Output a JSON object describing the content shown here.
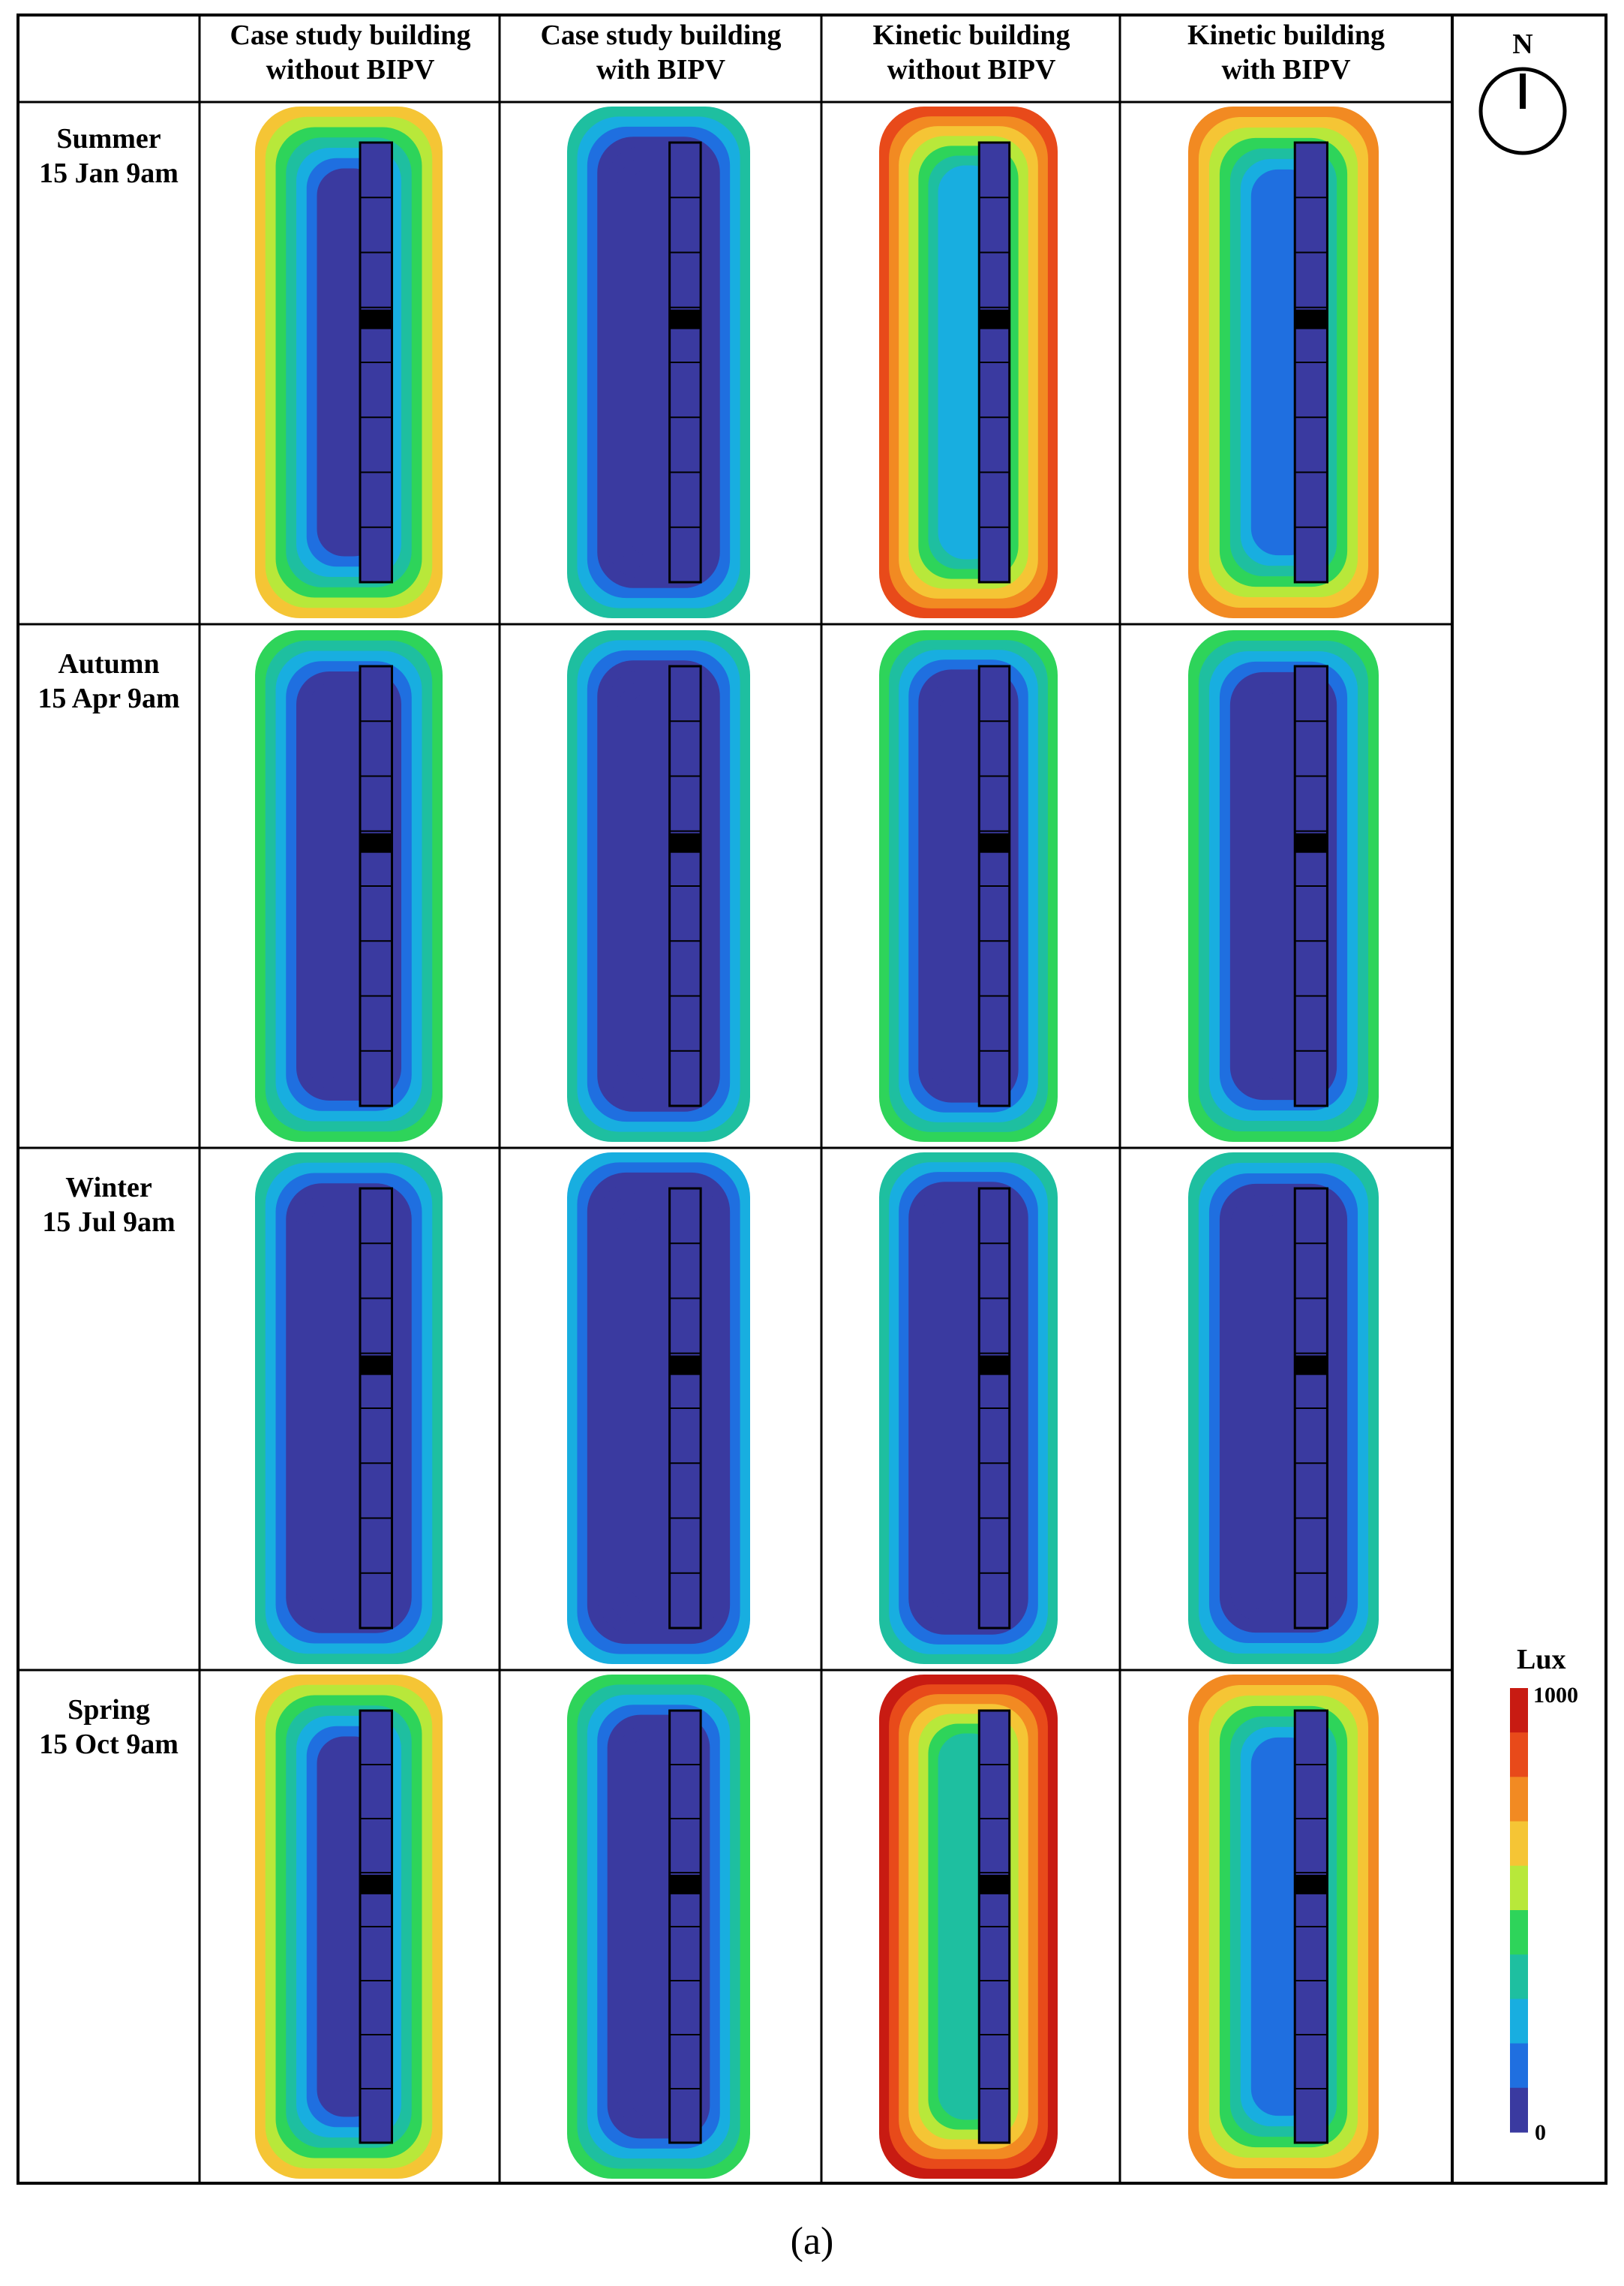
{
  "columns": [
    {
      "line1": "Case study building",
      "line2": "without BIPV"
    },
    {
      "line1": "Case study building",
      "line2": "with BIPV"
    },
    {
      "line1": "Kinetic building",
      "line2": "without BIPV"
    },
    {
      "line1": "Kinetic building",
      "line2": "with BIPV"
    }
  ],
  "rows": [
    {
      "season": "Summer",
      "datetime": "15 Jan 9am"
    },
    {
      "season": "Autumn",
      "datetime": "15 Apr 9am"
    },
    {
      "season": "Winter",
      "datetime": "15 Jul 9am"
    },
    {
      "season": "Spring",
      "datetime": "15 Oct 9am"
    }
  ],
  "compass": {
    "label": "N"
  },
  "legend": {
    "title": "Lux",
    "max_label": "1000",
    "min_label": "0",
    "colors": [
      "#c81b12",
      "#e84a1a",
      "#f28a22",
      "#f5c535",
      "#b8e83a",
      "#2ed45a",
      "#1ebfa0",
      "#18aee0",
      "#1f6fe0",
      "#3a3aa0"
    ]
  },
  "caption": "(a)",
  "chart_data": {
    "type": "heatmap",
    "title": "",
    "value_label": "Lux",
    "range": [
      0,
      1000
    ],
    "intensity_levels": [
      [
        0.55,
        0.2,
        0.9,
        0.65
      ],
      [
        0.35,
        0.1,
        0.35,
        0.3
      ],
      [
        0.1,
        0.0,
        0.15,
        0.1
      ],
      [
        0.6,
        0.3,
        0.95,
        0.7
      ]
    ]
  }
}
